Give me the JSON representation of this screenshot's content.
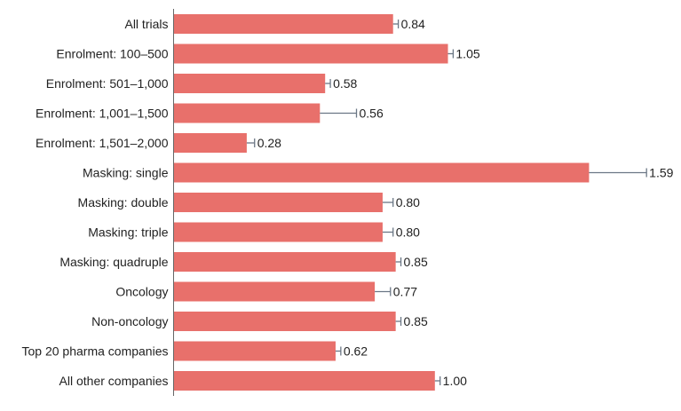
{
  "chart_data": {
    "type": "bar",
    "orientation": "horizontal",
    "title": "",
    "xlabel": "",
    "ylabel": "",
    "xlim": [
      0,
      1.9
    ],
    "grid": false,
    "bar_color": "#e8706b",
    "error_color": "#6b7785",
    "categories": [
      "All trials",
      "Enrolment: 100–500",
      "Enrolment: 501–1,000",
      "Enrolment: 1,001–1,500",
      "Enrolment: 1,501–2,000",
      "Masking: single",
      "Masking: double",
      "Masking: triple",
      "Masking: quadruple",
      "Oncology",
      "Non-oncology",
      "Top 20 pharma companies",
      "All other companies"
    ],
    "values": [
      0.84,
      1.05,
      0.58,
      0.56,
      0.28,
      1.59,
      0.8,
      0.8,
      0.85,
      0.77,
      0.85,
      0.62,
      1.0
    ],
    "value_labels": [
      "0.84",
      "1.05",
      "0.58",
      "0.56",
      "0.28",
      "1.59",
      "0.80",
      "0.80",
      "0.85",
      "0.77",
      "0.85",
      "0.62",
      "1.00"
    ],
    "error_upper": [
      0.86,
      1.07,
      0.6,
      0.7,
      0.31,
      1.81,
      0.84,
      0.84,
      0.87,
      0.83,
      0.87,
      0.64,
      1.02
    ]
  }
}
